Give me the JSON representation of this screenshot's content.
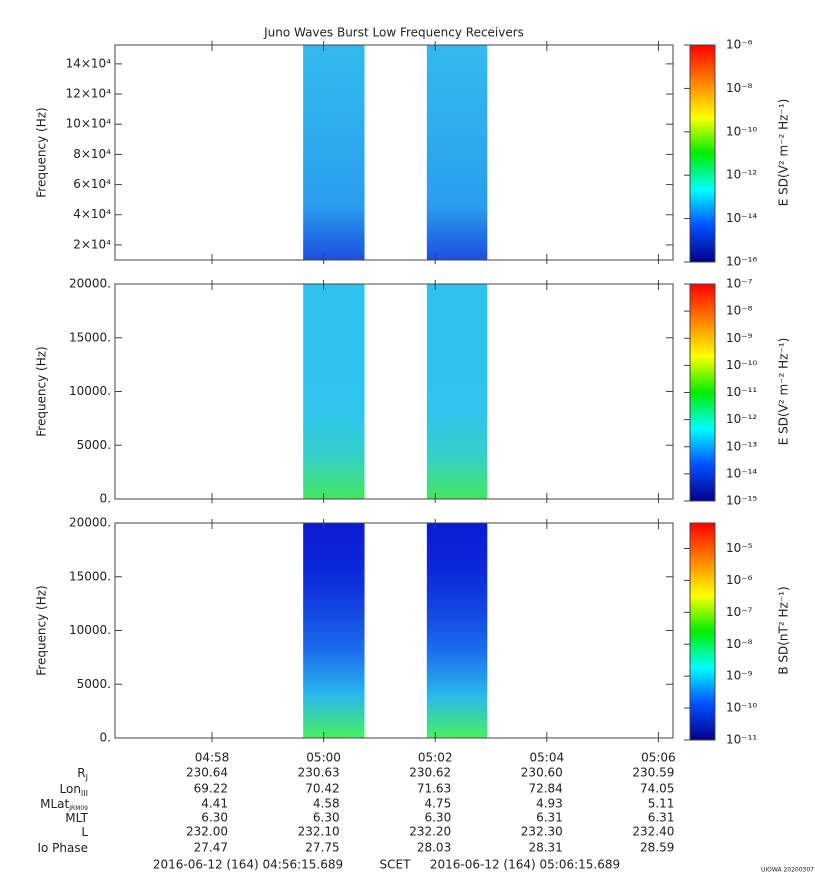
{
  "title": "Juno Waves Burst Low Frequency Receivers",
  "colormap": [
    "#ff0000",
    "#ff8000",
    "#ffff00",
    "#00ee00",
    "#00ffff",
    "#0050ff",
    "#00008a"
  ],
  "x_axis": {
    "xlim": [
      "04:56:15.689",
      "05:06:15.689"
    ],
    "xticks": [
      "04:58",
      "05:00",
      "05:02",
      "05:04",
      "05:06"
    ]
  },
  "chart_data": [
    {
      "type": "spectrogram",
      "ylabel": "Frequency (Hz)",
      "ylim": [
        10000,
        152500
      ],
      "yticks": [
        {
          "value": 20000,
          "label": "2×10⁴"
        },
        {
          "value": 40000,
          "label": "4×10⁴"
        },
        {
          "value": 60000,
          "label": "6×10⁴"
        },
        {
          "value": 80000,
          "label": "8×10⁴"
        },
        {
          "value": 100000,
          "label": "10×10⁴"
        },
        {
          "value": 120000,
          "label": "12×10⁴"
        },
        {
          "value": 140000,
          "label": "14×10⁴"
        }
      ],
      "bursts": [
        {
          "start": "04:59:38",
          "end": "05:00:44"
        },
        {
          "start": "05:01:51",
          "end": "05:02:56"
        }
      ],
      "colors": [
        "#32b8ee",
        "#2fb2ee",
        "#2ca8ee",
        "#2a9cee",
        "#1c4fe0"
      ],
      "colorbar_label": "E SD(V² m⁻² Hz⁻¹)",
      "log": true,
      "zlim": [
        1e-16,
        1e-06
      ],
      "zticks": [
        {
          "value": 1e-06,
          "label": "10⁻⁶"
        },
        {
          "value": 1e-08,
          "label": "10⁻⁸"
        },
        {
          "value": 1e-10,
          "label": "10⁻¹⁰"
        },
        {
          "value": 1e-12,
          "label": "10⁻¹²"
        },
        {
          "value": 1e-14,
          "label": "10⁻¹⁴"
        },
        {
          "value": 1e-16,
          "label": "10⁻¹⁶"
        }
      ]
    },
    {
      "type": "spectrogram",
      "ylabel": "Frequency (Hz)",
      "ylim": [
        0,
        20000
      ],
      "yticks": [
        {
          "value": 0,
          "label": "0."
        },
        {
          "value": 5000,
          "label": "5000."
        },
        {
          "value": 10000,
          "label": "10000."
        },
        {
          "value": 15000,
          "label": "15000."
        },
        {
          "value": 20000,
          "label": "20000."
        }
      ],
      "bursts": [
        {
          "start": "04:59:38",
          "end": "05:00:44"
        },
        {
          "start": "05:01:51",
          "end": "05:02:56"
        }
      ],
      "colors": [
        "#30c2ee",
        "#30c2ee",
        "#30c2ee",
        "#30c4ec",
        "#34d0c8",
        "#44e660"
      ],
      "colorbar_label": "E SD(V² m⁻² Hz⁻¹)",
      "log": true,
      "zlim": [
        1e-15,
        1e-07
      ],
      "zticks": [
        {
          "value": 1e-07,
          "label": "10⁻⁷"
        },
        {
          "value": 1e-08,
          "label": "10⁻⁸"
        },
        {
          "value": 1e-09,
          "label": "10⁻⁹"
        },
        {
          "value": 1e-10,
          "label": "10⁻¹⁰"
        },
        {
          "value": 1e-11,
          "label": "10⁻¹¹"
        },
        {
          "value": 1e-12,
          "label": "10⁻¹²"
        },
        {
          "value": 1e-13,
          "label": "10⁻¹³"
        },
        {
          "value": 1e-14,
          "label": "10⁻¹⁴"
        },
        {
          "value": 1e-15,
          "label": "10⁻¹⁵"
        }
      ]
    },
    {
      "type": "spectrogram",
      "ylabel": "Frequency (Hz)",
      "ylim": [
        0,
        20000
      ],
      "yticks": [
        {
          "value": 0,
          "label": "0."
        },
        {
          "value": 5000,
          "label": "5000."
        },
        {
          "value": 10000,
          "label": "10000."
        },
        {
          "value": 15000,
          "label": "15000."
        },
        {
          "value": 20000,
          "label": "20000."
        }
      ],
      "bursts": [
        {
          "start": "04:59:38",
          "end": "05:00:44"
        },
        {
          "start": "05:01:51",
          "end": "05:02:56"
        }
      ],
      "colors": [
        "#0a1cd4",
        "#0c26d8",
        "#1244e2",
        "#1c70ee",
        "#28b8ec",
        "#48f060"
      ],
      "colorbar_label": "B SD(nT² Hz⁻¹)",
      "log": true,
      "zlim": [
        1e-11,
        6.3e-05
      ],
      "zticks": [
        {
          "value": 1e-05,
          "label": "10⁻⁵"
        },
        {
          "value": 1e-06,
          "label": "10⁻⁶"
        },
        {
          "value": 1e-07,
          "label": "10⁻⁷"
        },
        {
          "value": 1e-08,
          "label": "10⁻⁸"
        },
        {
          "value": 1e-09,
          "label": "10⁻⁹"
        },
        {
          "value": 1e-10,
          "label": "10⁻¹⁰"
        },
        {
          "value": 1e-11,
          "label": "10⁻¹¹"
        }
      ]
    }
  ],
  "ephemeris": [
    {
      "label": "R",
      "sub": "J",
      "values": [
        "230.64",
        "230.63",
        "230.62",
        "230.60",
        "230.59"
      ]
    },
    {
      "label": "Lon",
      "sub": "III",
      "values": [
        "69.22",
        "70.42",
        "71.63",
        "72.84",
        "74.05"
      ]
    },
    {
      "label": "MLat",
      "sub": "JRM09",
      "values": [
        "4.41",
        "4.58",
        "4.75",
        "4.93",
        "5.11"
      ]
    },
    {
      "label": "MLT",
      "values": [
        "6.30",
        "6.30",
        "6.30",
        "6.31",
        "6.31"
      ]
    },
    {
      "label": "L",
      "values": [
        "232.00",
        "232.10",
        "232.20",
        "232.30",
        "232.40"
      ]
    },
    {
      "label": "Io Phase",
      "values": [
        "27.47",
        "27.75",
        "28.03",
        "28.31",
        "28.59"
      ]
    }
  ],
  "time_range": {
    "start": "2016-06-12 (164) 04:56:15.689",
    "system": "SCET",
    "end": "2016-06-12 (164) 05:06:15.689"
  },
  "footer": "UIOWA 20200307"
}
